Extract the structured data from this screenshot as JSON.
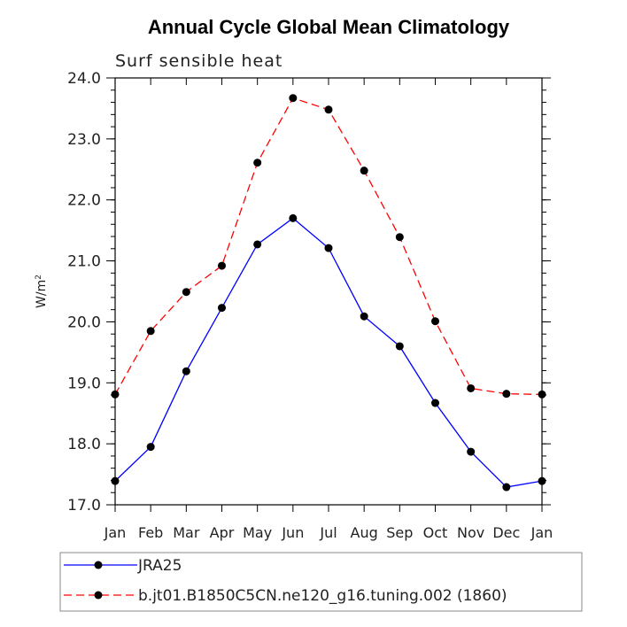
{
  "chart_data": {
    "type": "line",
    "title": "Annual Cycle Global Mean Climatology",
    "subtitle": "Surf sensible heat",
    "ylabel_base": "W/m",
    "ylabel_sup": "2",
    "categories": [
      "Jan",
      "Feb",
      "Mar",
      "Apr",
      "May",
      "Jun",
      "Jul",
      "Aug",
      "Sep",
      "Oct",
      "Nov",
      "Dec",
      "Jan"
    ],
    "ylim": [
      17.0,
      24.0
    ],
    "yticks": [
      "17.0",
      "18.0",
      "19.0",
      "20.0",
      "21.0",
      "22.0",
      "23.0",
      "24.0"
    ],
    "grid": false,
    "legend_position": "bottom",
    "series": [
      {
        "name": "JRA25",
        "color": "#0000ff",
        "dash": "solid",
        "values": [
          17.39,
          17.95,
          19.19,
          20.23,
          21.27,
          21.7,
          21.21,
          20.09,
          19.6,
          18.67,
          17.87,
          17.29,
          17.39
        ]
      },
      {
        "name": "b.jt01.B1850C5CN.ne120_g16.tuning.002 (1860)",
        "color": "#ff0000",
        "dash": "dashed",
        "values": [
          18.81,
          19.85,
          20.49,
          20.92,
          22.61,
          23.67,
          23.48,
          22.48,
          21.39,
          20.01,
          18.91,
          18.82,
          18.81
        ]
      }
    ]
  }
}
